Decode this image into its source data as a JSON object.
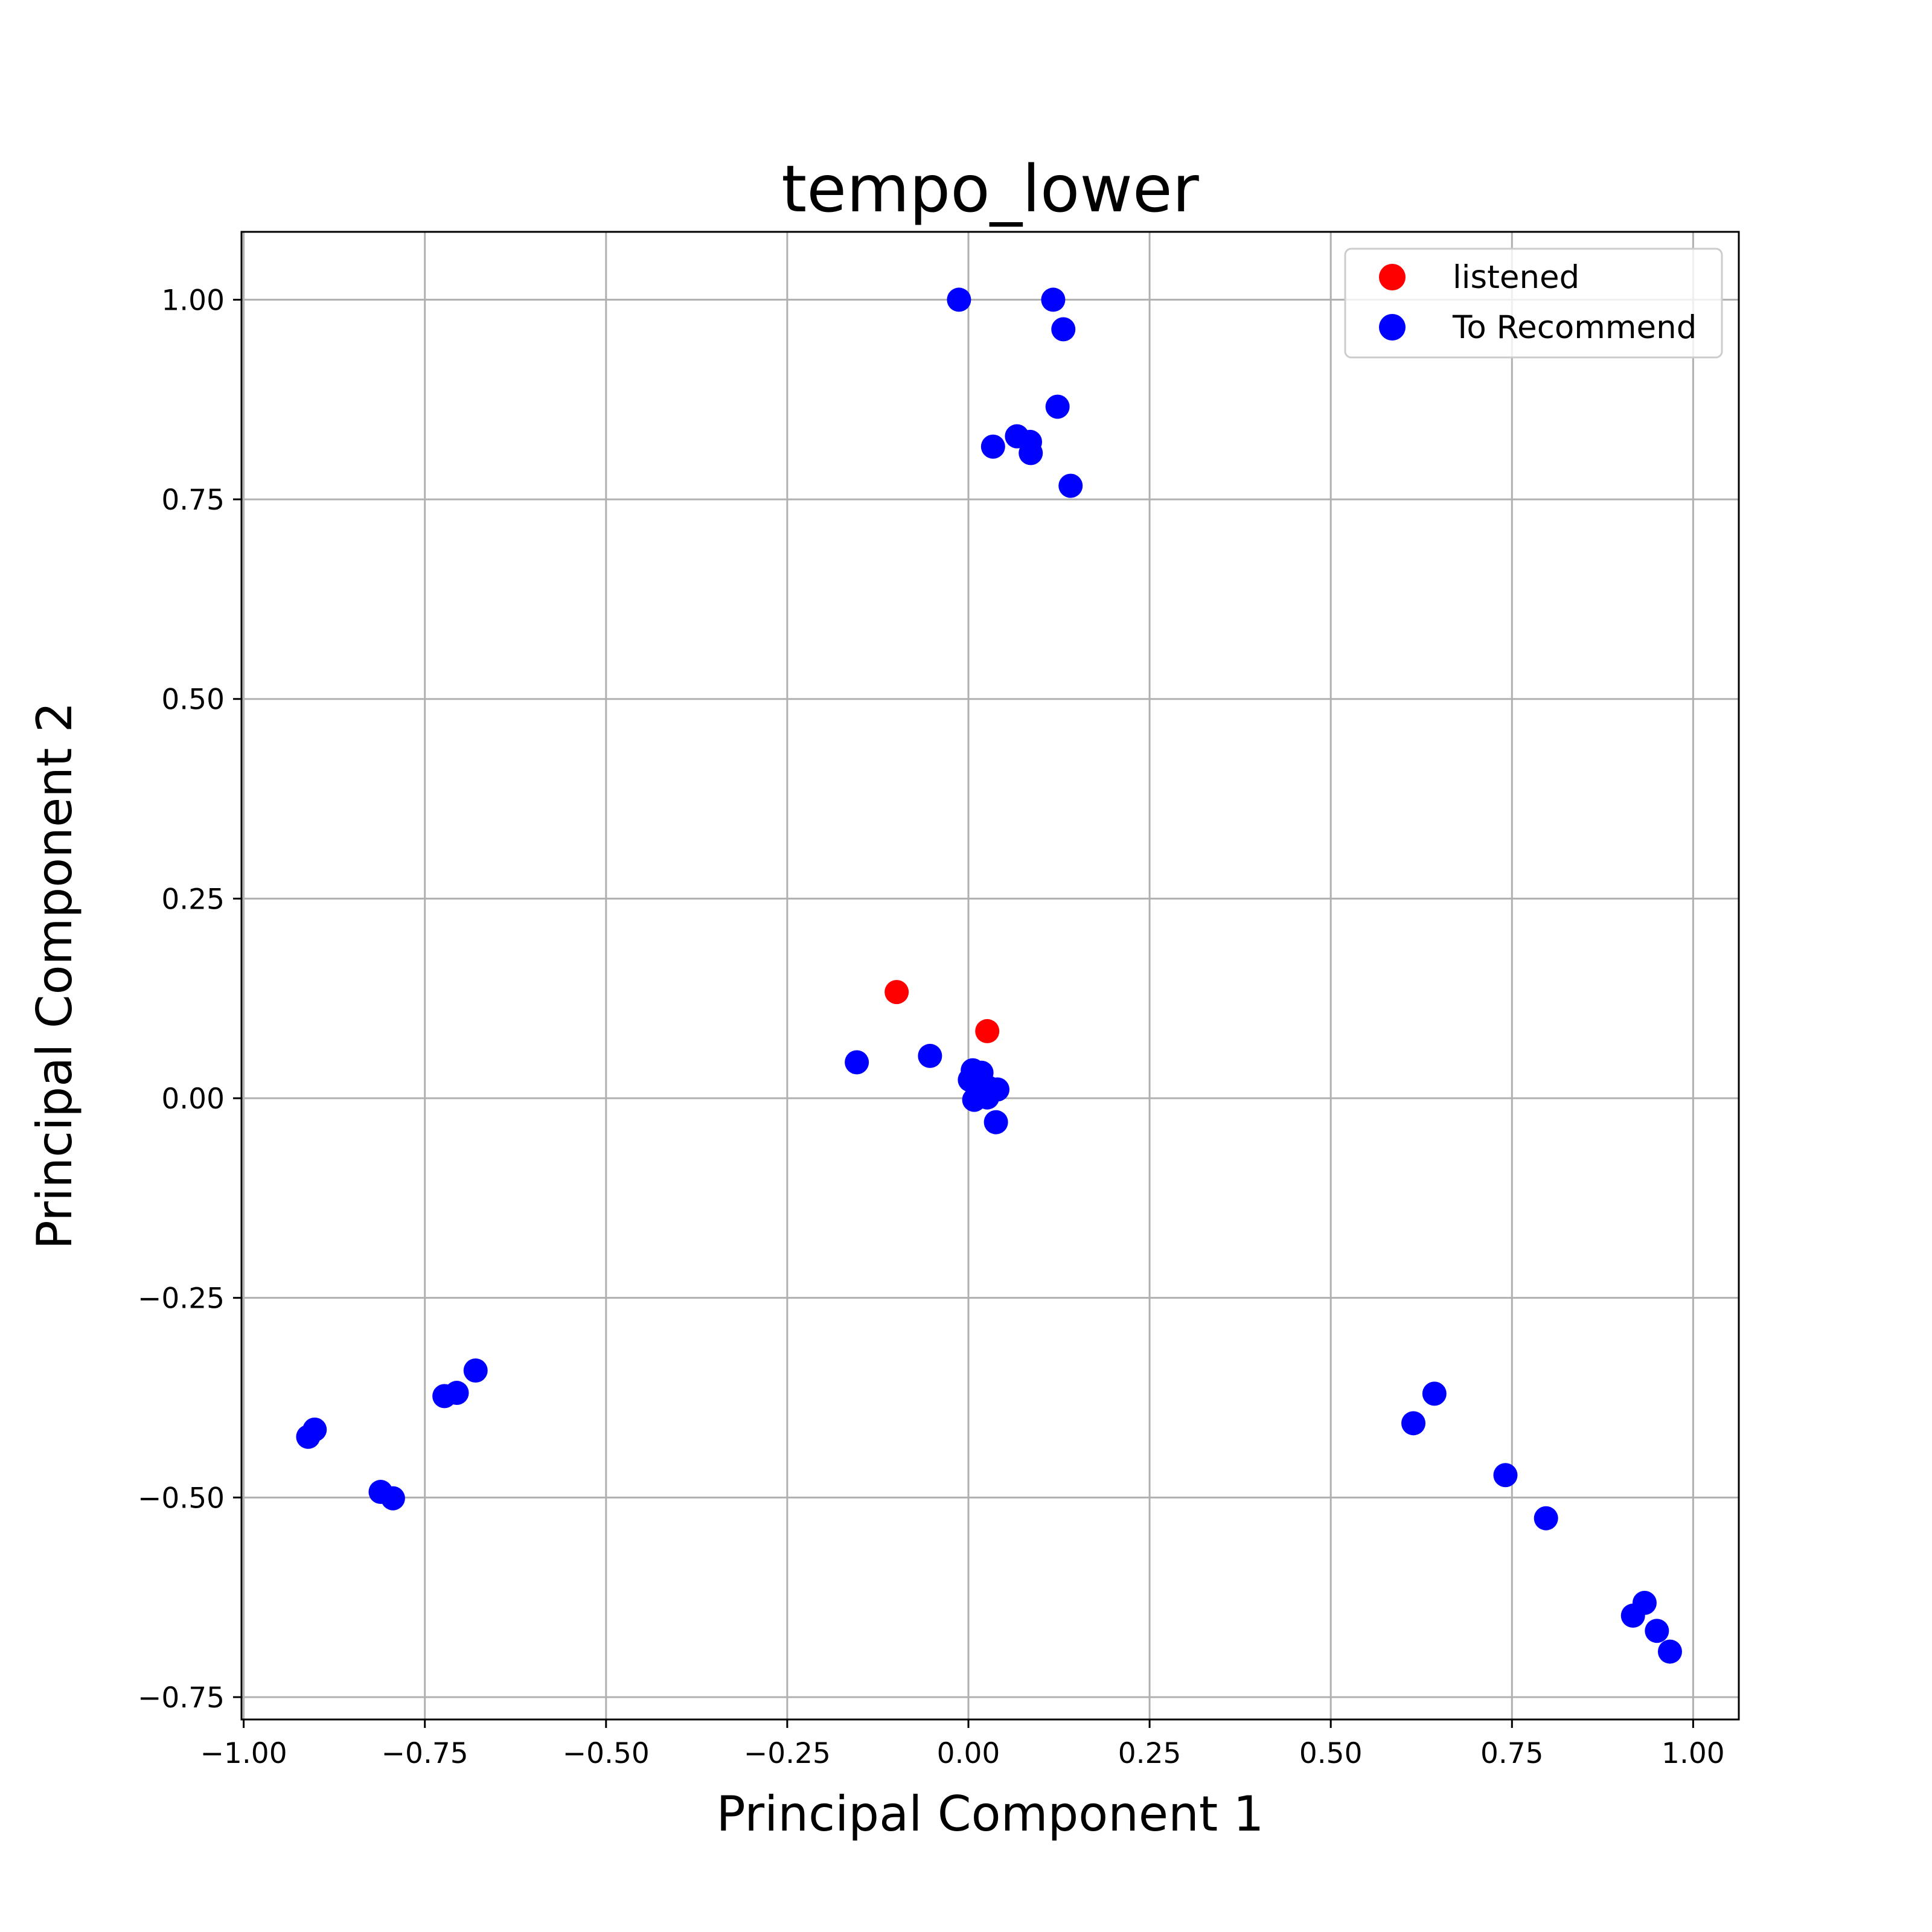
{
  "chart_data": {
    "type": "scatter",
    "title": "tempo_lower",
    "xlabel": "Principal Component 1",
    "ylabel": "Principal Component 2",
    "xlim": [
      -1.003,
      1.063
    ],
    "ylim": [
      -0.778,
      1.085
    ],
    "xticks": [
      -1.0,
      -0.75,
      -0.5,
      -0.25,
      0.0,
      0.25,
      0.5,
      0.75,
      1.0
    ],
    "xtick_labels": [
      "−1.00",
      "−0.75",
      "−0.50",
      "−0.25",
      "0.00",
      "0.25",
      "0.50",
      "0.75",
      "1.00"
    ],
    "yticks": [
      -0.75,
      -0.5,
      -0.25,
      0.0,
      0.25,
      0.5,
      0.75,
      1.0
    ],
    "ytick_labels": [
      "−0.75",
      "−0.50",
      "−0.25",
      "0.00",
      "0.25",
      "0.50",
      "0.75",
      "1.00"
    ],
    "grid": true,
    "legend_position": "top-right",
    "series": [
      {
        "name": "listened",
        "color": "#ff0000",
        "points": [
          {
            "x": -0.099,
            "y": 0.133
          },
          {
            "x": 0.026,
            "y": 0.084
          }
        ]
      },
      {
        "name": "To Recommend",
        "color": "#0000ff",
        "points": [
          {
            "x": -0.013,
            "y": 1.0
          },
          {
            "x": 0.117,
            "y": 1.0
          },
          {
            "x": 0.131,
            "y": 0.963
          },
          {
            "x": 0.123,
            "y": 0.866
          },
          {
            "x": 0.067,
            "y": 0.829
          },
          {
            "x": 0.085,
            "y": 0.822
          },
          {
            "x": 0.034,
            "y": 0.816
          },
          {
            "x": 0.086,
            "y": 0.808
          },
          {
            "x": 0.141,
            "y": 0.767
          },
          {
            "x": -0.154,
            "y": 0.045
          },
          {
            "x": -0.053,
            "y": 0.053
          },
          {
            "x": 0.006,
            "y": 0.035
          },
          {
            "x": 0.018,
            "y": 0.032
          },
          {
            "x": 0.002,
            "y": 0.023
          },
          {
            "x": 0.028,
            "y": 0.013
          },
          {
            "x": 0.04,
            "y": 0.011
          },
          {
            "x": 0.008,
            "y": -0.002
          },
          {
            "x": 0.026,
            "y": 0.001
          },
          {
            "x": 0.038,
            "y": -0.03
          },
          {
            "x": -0.68,
            "y": -0.341
          },
          {
            "x": -0.706,
            "y": -0.369
          },
          {
            "x": -0.723,
            "y": -0.373
          },
          {
            "x": -0.902,
            "y": -0.415
          },
          {
            "x": -0.911,
            "y": -0.424
          },
          {
            "x": -0.811,
            "y": -0.493
          },
          {
            "x": -0.794,
            "y": -0.501
          },
          {
            "x": 0.643,
            "y": -0.37
          },
          {
            "x": 0.614,
            "y": -0.407
          },
          {
            "x": 0.741,
            "y": -0.472
          },
          {
            "x": 0.797,
            "y": -0.526
          },
          {
            "x": 0.933,
            "y": -0.632
          },
          {
            "x": 0.917,
            "y": -0.648
          },
          {
            "x": 0.95,
            "y": -0.667
          },
          {
            "x": 0.968,
            "y": -0.693
          }
        ]
      }
    ]
  }
}
